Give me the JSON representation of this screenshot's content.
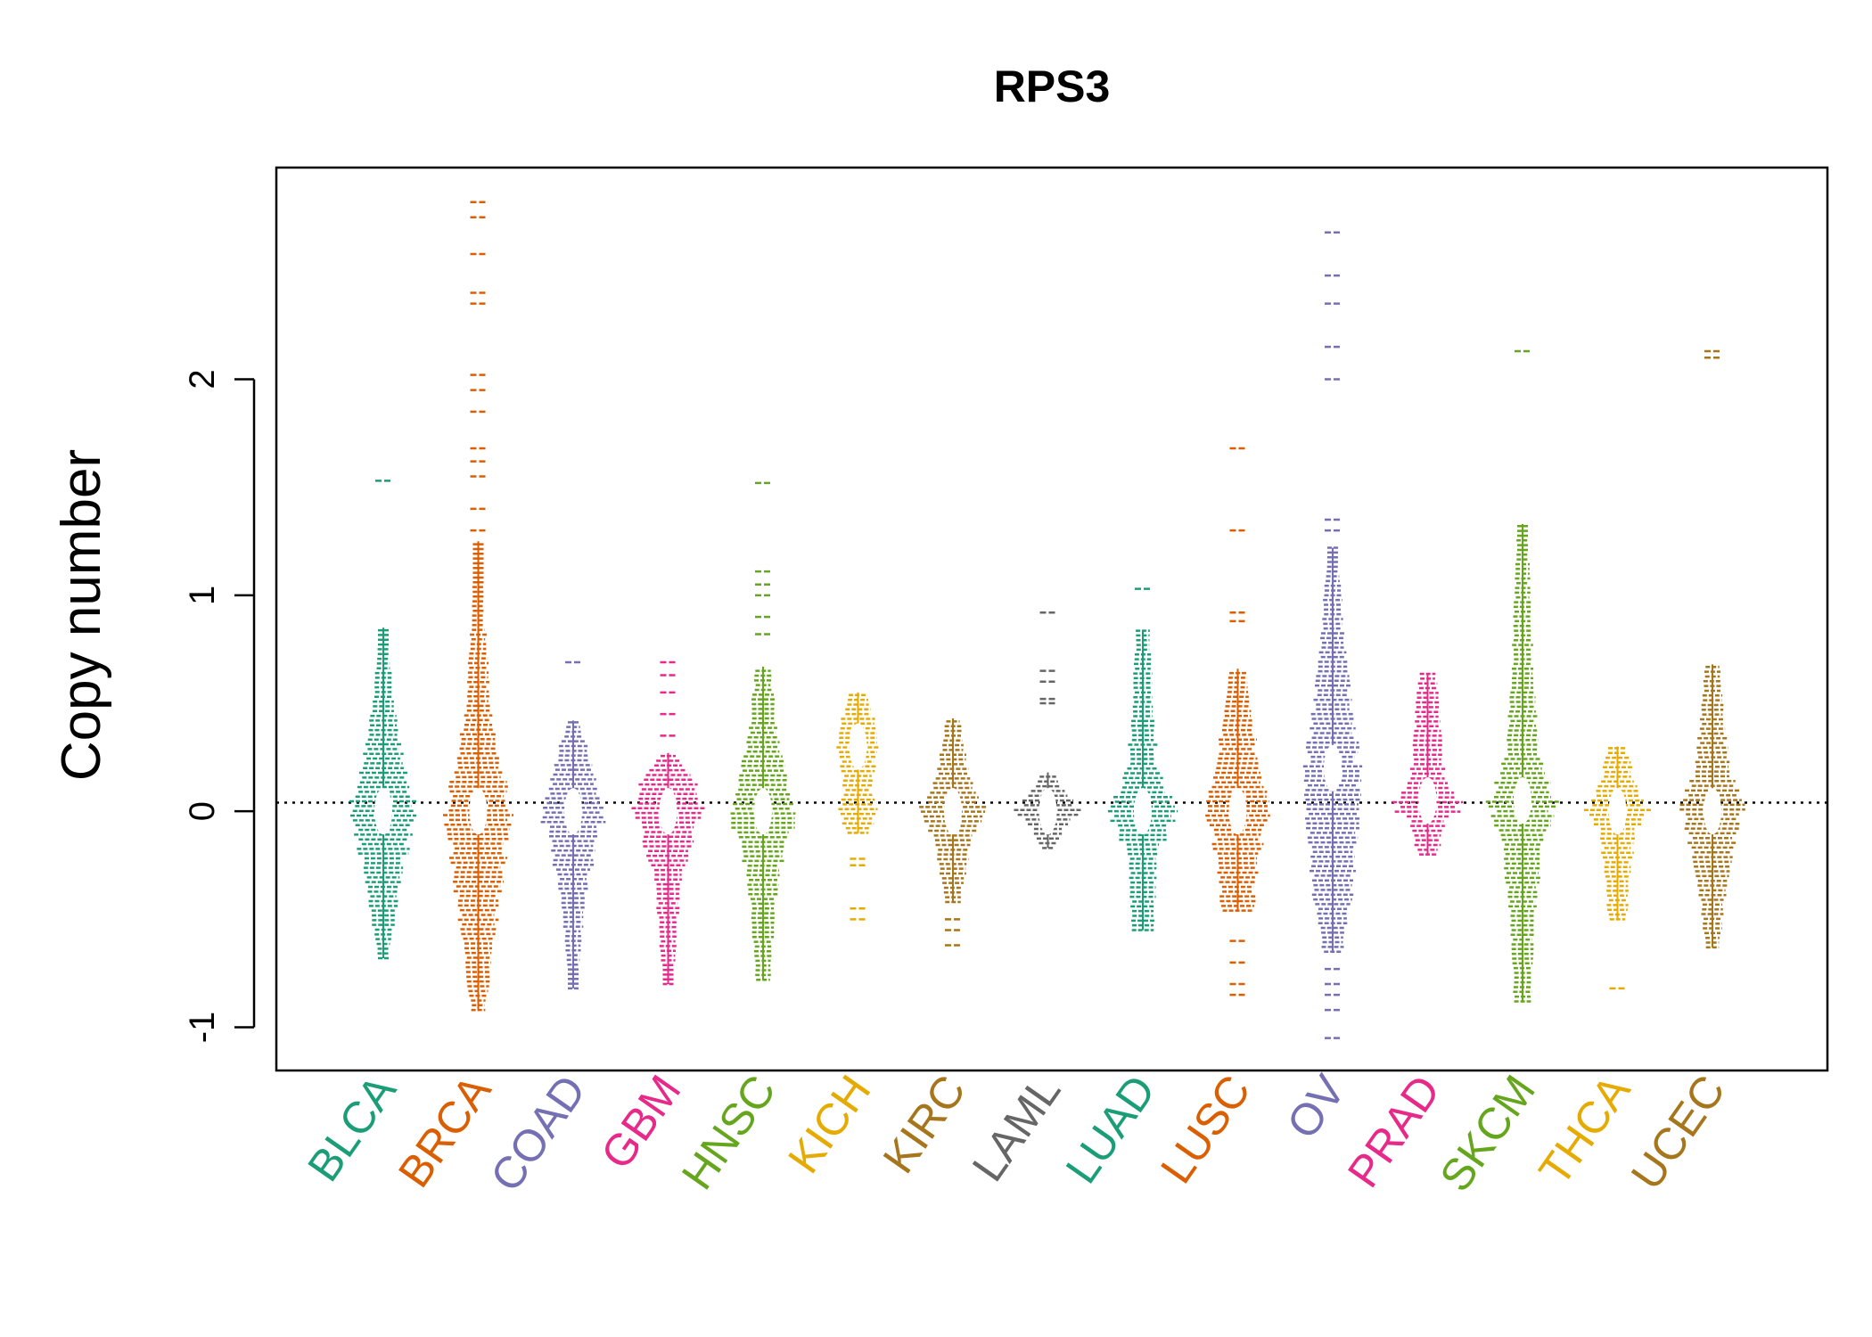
{
  "chart_data": {
    "type": "scatter",
    "title": "RPS3",
    "xlabel": "",
    "ylabel": "Copy number",
    "ylim": [
      -1.2,
      2.98
    ],
    "yticks": [
      -1,
      0,
      1,
      2
    ],
    "reference_line": {
      "y": 0.04,
      "style": "dotted"
    },
    "grid": false,
    "categories": [
      "BLCA",
      "BRCA",
      "COAD",
      "GBM",
      "HNSC",
      "KICH",
      "KIRC",
      "LAML",
      "LUAD",
      "LUSC",
      "OV",
      "PRAD",
      "SKCM",
      "THCA",
      "UCEC"
    ],
    "series": [
      {
        "category": "BLCA",
        "color": "#1B9E77",
        "min": -0.68,
        "max": 0.85,
        "outliers": [
          1.53
        ],
        "shape": [
          [
            -0.68,
            0.15
          ],
          [
            -0.35,
            0.5
          ],
          [
            -0.1,
            0.8
          ],
          [
            0.0,
            1.0
          ],
          [
            0.1,
            0.8
          ],
          [
            0.3,
            0.5
          ],
          [
            0.6,
            0.25
          ],
          [
            0.85,
            0.1
          ]
        ]
      },
      {
        "category": "BRCA",
        "color": "#D95F02",
        "min": -0.92,
        "max": 1.25,
        "outliers": [
          1.3,
          1.4,
          1.55,
          1.62,
          1.68,
          1.85,
          1.95,
          2.02,
          2.35,
          2.4,
          2.58,
          2.75,
          2.82
        ],
        "shape": [
          [
            -0.92,
            0.2
          ],
          [
            -0.5,
            0.55
          ],
          [
            -0.15,
            0.85
          ],
          [
            0.0,
            1.0
          ],
          [
            0.2,
            0.7
          ],
          [
            0.5,
            0.35
          ],
          [
            0.9,
            0.2
          ],
          [
            1.25,
            0.1
          ]
        ]
      },
      {
        "category": "COAD",
        "color": "#7570B3",
        "min": -0.82,
        "max": 0.42,
        "outliers": [
          0.69
        ],
        "shape": [
          [
            -0.82,
            0.1
          ],
          [
            -0.4,
            0.35
          ],
          [
            -0.1,
            0.75
          ],
          [
            0.0,
            1.0
          ],
          [
            0.1,
            0.7
          ],
          [
            0.3,
            0.4
          ],
          [
            0.42,
            0.15
          ]
        ]
      },
      {
        "category": "GBM",
        "color": "#E7298A",
        "min": -0.8,
        "max": 0.27,
        "outliers": [
          0.35,
          0.45,
          0.55,
          0.63,
          0.69
        ],
        "shape": [
          [
            -0.8,
            0.15
          ],
          [
            -0.3,
            0.4
          ],
          [
            -0.05,
            0.9
          ],
          [
            0.0,
            1.0
          ],
          [
            0.1,
            0.9
          ],
          [
            0.2,
            0.5
          ],
          [
            0.27,
            0.2
          ]
        ]
      },
      {
        "category": "HNSC",
        "color": "#66A61E",
        "min": -0.78,
        "max": 0.67,
        "outliers": [
          0.82,
          0.9,
          1.0,
          1.05,
          1.11,
          1.52
        ],
        "shape": [
          [
            -0.78,
            0.2
          ],
          [
            -0.3,
            0.45
          ],
          [
            -0.05,
            0.9
          ],
          [
            0.0,
            1.0
          ],
          [
            0.1,
            0.8
          ],
          [
            0.4,
            0.4
          ],
          [
            0.67,
            0.2
          ]
        ]
      },
      {
        "category": "KICH",
        "color": "#E6AB02",
        "min": -0.1,
        "max": 0.55,
        "outliers": [
          -0.5,
          -0.45,
          -0.25,
          -0.22
        ],
        "shape": [
          [
            -0.1,
            0.3
          ],
          [
            0.0,
            0.6
          ],
          [
            0.1,
            0.4
          ],
          [
            0.2,
            0.5
          ],
          [
            0.3,
            0.7
          ],
          [
            0.4,
            0.5
          ],
          [
            0.55,
            0.3
          ]
        ]
      },
      {
        "category": "KIRC",
        "color": "#A6761D",
        "min": -0.42,
        "max": 0.43,
        "outliers": [
          -0.62,
          -0.55,
          -0.5
        ],
        "shape": [
          [
            -0.42,
            0.25
          ],
          [
            -0.15,
            0.5
          ],
          [
            0.0,
            1.0
          ],
          [
            0.15,
            0.5
          ],
          [
            0.43,
            0.2
          ]
        ]
      },
      {
        "category": "LAML",
        "color": "#666666",
        "min": -0.17,
        "max": 0.18,
        "outliers": [
          0.5,
          0.52,
          0.6,
          0.65,
          0.92
        ],
        "shape": [
          [
            -0.17,
            0.2
          ],
          [
            -0.05,
            0.6
          ],
          [
            0.0,
            1.0
          ],
          [
            0.08,
            0.5
          ],
          [
            0.18,
            0.2
          ]
        ]
      },
      {
        "category": "LUAD",
        "color": "#1B9E77",
        "min": -0.55,
        "max": 0.84,
        "outliers": [
          1.03
        ],
        "shape": [
          [
            -0.55,
            0.3
          ],
          [
            -0.2,
            0.45
          ],
          [
            0.0,
            1.0
          ],
          [
            0.2,
            0.45
          ],
          [
            0.5,
            0.3
          ],
          [
            0.84,
            0.2
          ]
        ]
      },
      {
        "category": "LUSC",
        "color": "#D95F02",
        "min": -0.46,
        "max": 0.66,
        "outliers": [
          -0.85,
          -0.8,
          -0.7,
          -0.6,
          0.88,
          0.92,
          1.3,
          1.68
        ],
        "shape": [
          [
            -0.46,
            0.45
          ],
          [
            -0.25,
            0.6
          ],
          [
            -0.05,
            0.8
          ],
          [
            0.0,
            1.0
          ],
          [
            0.2,
            0.6
          ],
          [
            0.5,
            0.4
          ],
          [
            0.66,
            0.25
          ]
        ]
      },
      {
        "category": "OV",
        "color": "#7570B3",
        "min": -0.65,
        "max": 1.22,
        "outliers": [
          -1.05,
          -0.92,
          -0.85,
          -0.8,
          -0.73,
          1.3,
          1.35,
          2.0,
          2.15,
          2.35,
          2.48,
          2.68
        ],
        "shape": [
          [
            -0.65,
            0.3
          ],
          [
            -0.4,
            0.55
          ],
          [
            -0.1,
            0.75
          ],
          [
            0.2,
            0.8
          ],
          [
            0.5,
            0.55
          ],
          [
            0.8,
            0.35
          ],
          [
            1.22,
            0.15
          ]
        ]
      },
      {
        "category": "PRAD",
        "color": "#E7298A",
        "min": -0.2,
        "max": 0.64,
        "outliers": [],
        "shape": [
          [
            -0.2,
            0.3
          ],
          [
            -0.05,
            0.5
          ],
          [
            0.0,
            0.9
          ],
          [
            0.05,
            1.0
          ],
          [
            0.15,
            0.5
          ],
          [
            0.64,
            0.25
          ]
        ]
      },
      {
        "category": "SKCM",
        "color": "#66A61E",
        "min": -0.88,
        "max": 1.33,
        "outliers": [
          2.13
        ],
        "shape": [
          [
            -0.88,
            0.25
          ],
          [
            -0.5,
            0.35
          ],
          [
            -0.15,
            0.6
          ],
          [
            0.05,
            1.0
          ],
          [
            0.25,
            0.5
          ],
          [
            0.7,
            0.3
          ],
          [
            1.33,
            0.15
          ]
        ]
      },
      {
        "category": "THCA",
        "color": "#E6AB02",
        "min": -0.5,
        "max": 0.3,
        "outliers": [
          -0.82
        ],
        "shape": [
          [
            -0.5,
            0.25
          ],
          [
            -0.1,
            0.5
          ],
          [
            0.0,
            1.0
          ],
          [
            0.08,
            0.6
          ],
          [
            0.3,
            0.25
          ]
        ]
      },
      {
        "category": "UCEC",
        "color": "#A6761D",
        "min": -0.63,
        "max": 0.68,
        "outliers": [
          2.1,
          2.13
        ],
        "shape": [
          [
            -0.63,
            0.2
          ],
          [
            -0.3,
            0.45
          ],
          [
            -0.05,
            0.8
          ],
          [
            0.0,
            1.0
          ],
          [
            0.15,
            0.6
          ],
          [
            0.4,
            0.35
          ],
          [
            0.68,
            0.2
          ]
        ]
      }
    ]
  }
}
